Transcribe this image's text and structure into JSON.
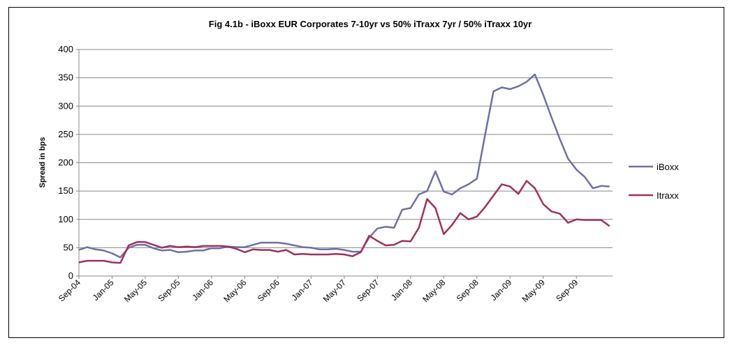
{
  "chart_data": {
    "type": "line",
    "title": "Fig 4.1b - iBoxx EUR Corporates 7-10yr vs 50% iTraxx 7yr / 50% iTraxx 10yr",
    "y_label": "Spread in bps",
    "categories": [
      "Sep-04",
      null,
      null,
      null,
      "Jan-05",
      null,
      null,
      null,
      "May-05",
      null,
      null,
      null,
      "Sep-05",
      null,
      null,
      null,
      "Jan-06",
      null,
      null,
      null,
      "May-06",
      null,
      null,
      null,
      "Sep-06",
      null,
      null,
      null,
      "Jan-07",
      null,
      null,
      null,
      "May-07",
      null,
      null,
      null,
      "Sep-07",
      null,
      null,
      null,
      "Jan-08",
      null,
      null,
      null,
      "May-08",
      null,
      null,
      null,
      "Sep-08",
      null,
      null,
      null,
      "Jan-09",
      null,
      null,
      null,
      "May-09",
      null,
      null,
      null,
      "Sep-09",
      null,
      null,
      null,
      null
    ],
    "series": [
      {
        "name": "iBoxx",
        "color": "#6f6fa8",
        "values": [
          46,
          51,
          47,
          45,
          40,
          33,
          50,
          55,
          55,
          49,
          45,
          46,
          42,
          43,
          45,
          45,
          49,
          49,
          52,
          51,
          51,
          55,
          59,
          59,
          59,
          57,
          54,
          51,
          50,
          47,
          47,
          48,
          46,
          43,
          43,
          68,
          84,
          87,
          85,
          117,
          120,
          144,
          150,
          185,
          149,
          144,
          155,
          162,
          172,
          250,
          326,
          333,
          330,
          335,
          343,
          356,
          320,
          280,
          242,
          207,
          188,
          175,
          155,
          159,
          158
        ]
      },
      {
        "name": "Itraxx",
        "color": "#a0305f",
        "values": [
          24,
          27,
          27,
          27,
          24,
          23,
          54,
          60,
          60,
          55,
          50,
          53,
          51,
          52,
          51,
          53,
          53,
          53,
          52,
          48,
          42,
          47,
          46,
          46,
          43,
          46,
          38,
          39,
          38,
          38,
          38,
          39,
          38,
          35,
          42,
          71,
          62,
          54,
          55,
          62,
          61,
          85,
          136,
          120,
          74,
          90,
          111,
          100,
          105,
          122,
          142,
          162,
          158,
          145,
          168,
          155,
          127,
          114,
          110,
          94,
          100,
          99,
          99,
          99,
          88
        ]
      }
    ],
    "ylim": [
      0,
      400
    ],
    "yticks": [
      0,
      50,
      100,
      150,
      200,
      250,
      300,
      350,
      400
    ],
    "grid": true,
    "legend": "right"
  }
}
